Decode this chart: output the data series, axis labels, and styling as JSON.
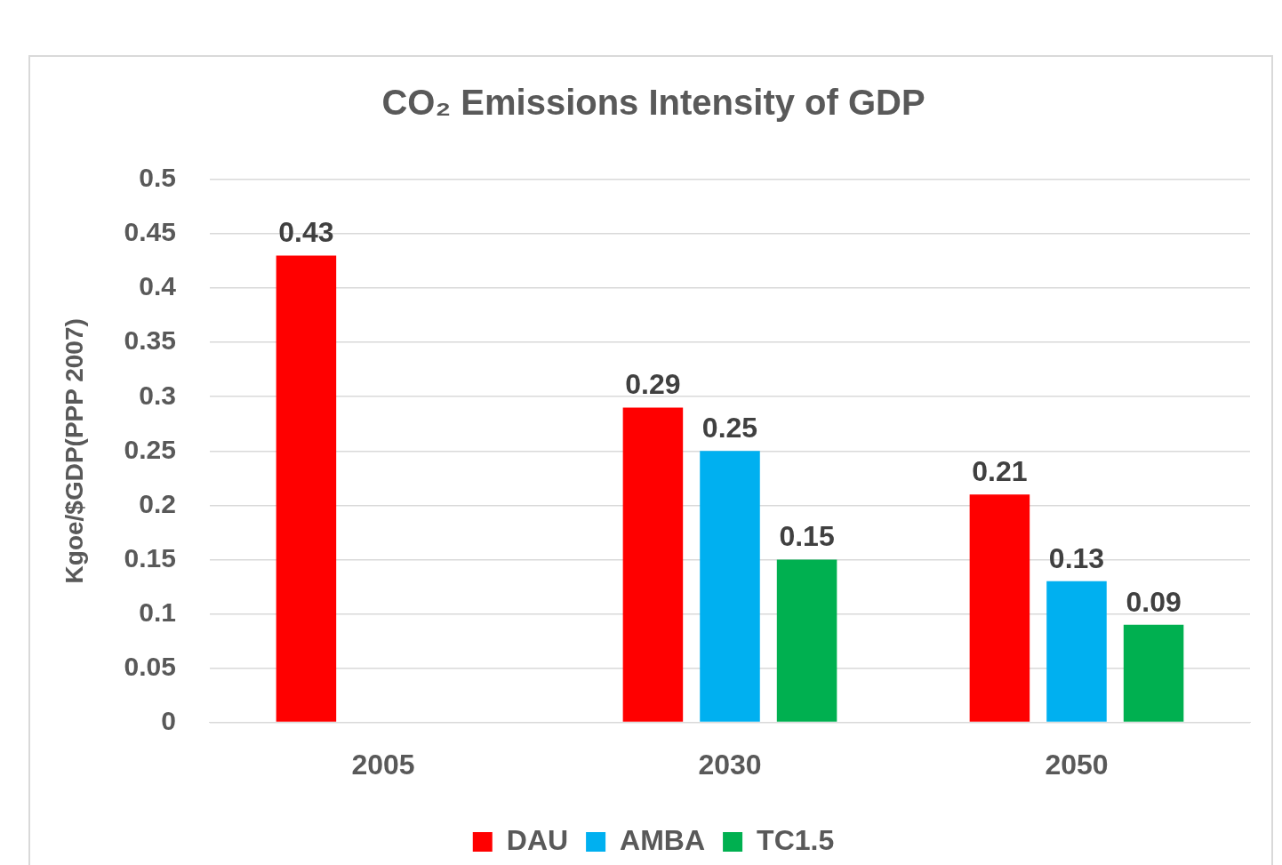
{
  "chart_data": {
    "type": "bar",
    "title": "CO₂ Emissions Intensity of GDP",
    "ylabel": "Kgoe/$GDP(PPP 2007)",
    "categories": [
      "2005",
      "2030",
      "2050"
    ],
    "series": [
      {
        "name": "DAU",
        "color": "#ff0000",
        "values": [
          0.43,
          0.29,
          0.21
        ]
      },
      {
        "name": "AMBA",
        "color": "#00b0f0",
        "values": [
          null,
          0.25,
          0.13
        ]
      },
      {
        "name": "TC1.5",
        "color": "#00b050",
        "values": [
          null,
          0.15,
          0.09
        ]
      }
    ],
    "ylim": [
      0,
      0.5
    ],
    "yticks": [
      0,
      0.05,
      0.1,
      0.15,
      0.2,
      0.25,
      0.3,
      0.35,
      0.4,
      0.45,
      0.5
    ],
    "grid": "y",
    "legend": "bottom",
    "data_labels": true
  }
}
